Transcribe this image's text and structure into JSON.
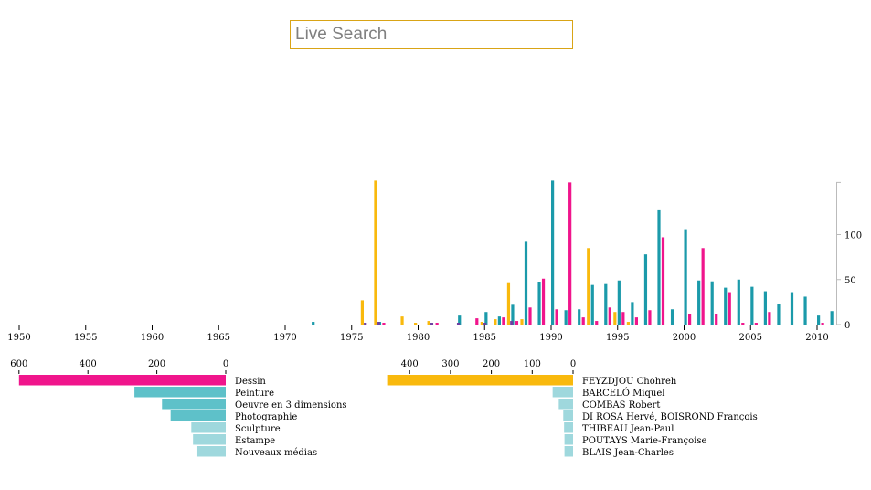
{
  "search": {
    "placeholder": "Live Search",
    "value": ""
  },
  "colors": {
    "teal": "#1b9aaa",
    "pink": "#f0158c",
    "yellow": "#f9b90d",
    "light_teal": "#5ec1c9",
    "pale_teal": "#9fd8dd",
    "purple": "#6e3fa0"
  },
  "chart_data": [
    {
      "type": "bar",
      "x_range": [
        1950,
        2011
      ],
      "x_ticks": [
        "1950",
        "1955",
        "1960",
        "1965",
        "1970",
        "1975",
        "1980",
        "1985",
        "1990",
        "1995",
        "2000",
        "2005",
        "2010"
      ],
      "y_ticks": [
        "0",
        "50",
        "100"
      ],
      "ylim": [
        0,
        160
      ],
      "grid": false,
      "series": [
        {
          "color": "teal",
          "points": [
            [
              1972,
              3
            ],
            [
              1977,
              3
            ],
            [
              1983,
              10
            ],
            [
              1985,
              14
            ],
            [
              1986,
              9
            ],
            [
              1987,
              22
            ],
            [
              1988,
              92
            ],
            [
              1989,
              47
            ],
            [
              1990,
              160
            ],
            [
              1991,
              16
            ],
            [
              1992,
              17
            ],
            [
              1993,
              44
            ],
            [
              1994,
              45
            ],
            [
              1995,
              49
            ],
            [
              1996,
              25
            ],
            [
              1997,
              78
            ],
            [
              1998,
              127
            ],
            [
              1999,
              17
            ],
            [
              2000,
              105
            ],
            [
              2001,
              49
            ],
            [
              2002,
              48
            ],
            [
              2003,
              41
            ],
            [
              2004,
              50
            ],
            [
              2005,
              42
            ],
            [
              2006,
              37
            ],
            [
              2007,
              23
            ],
            [
              2008,
              36
            ],
            [
              2009,
              31
            ],
            [
              2010,
              10
            ],
            [
              2011,
              15
            ]
          ]
        },
        {
          "color": "pink",
          "points": [
            [
              1977,
              2
            ],
            [
              1981,
              2
            ],
            [
              1984,
              7
            ],
            [
              1986,
              8
            ],
            [
              1987,
              4
            ],
            [
              1988,
              19
            ],
            [
              1989,
              51
            ],
            [
              1990,
              17
            ],
            [
              1991,
              158
            ],
            [
              1992,
              8
            ],
            [
              1993,
              4
            ],
            [
              1994,
              19
            ],
            [
              1995,
              14
            ],
            [
              1996,
              8
            ],
            [
              1997,
              16
            ],
            [
              1998,
              97
            ],
            [
              2000,
              12
            ],
            [
              2001,
              85
            ],
            [
              2002,
              12
            ],
            [
              2003,
              36
            ],
            [
              2004,
              2
            ],
            [
              2005,
              2
            ],
            [
              2006,
              14
            ],
            [
              2010,
              2
            ]
          ]
        },
        {
          "color": "yellow",
          "points": [
            [
              1976,
              27
            ],
            [
              1977,
              160
            ],
            [
              1979,
              9
            ],
            [
              1980,
              2
            ],
            [
              1981,
              4
            ],
            [
              1985,
              3
            ],
            [
              1986,
              6
            ],
            [
              1987,
              46
            ],
            [
              1988,
              6
            ],
            [
              1993,
              85
            ],
            [
              1995,
              14
            ],
            [
              1996,
              3
            ]
          ]
        },
        {
          "color": "purple",
          "points": [
            [
              1976,
              2
            ],
            [
              1977,
              3
            ],
            [
              1981,
              2
            ],
            [
              1983,
              2
            ],
            [
              1985,
              2
            ],
            [
              1987,
              4
            ]
          ]
        }
      ]
    },
    {
      "type": "bar",
      "orientation": "horizontal",
      "axis_ticks": [
        "600",
        "400",
        "200",
        "0"
      ],
      "xlim": [
        0,
        600
      ],
      "categories": [
        "Dessin",
        "Peinture",
        "Oeuvre en 3 dimensions",
        "Photographie",
        "Sculpture",
        "Estampe",
        "Nouveaux médias"
      ],
      "values": [
        600,
        265,
        185,
        160,
        100,
        95,
        85
      ],
      "bar_colors": [
        "pink",
        "light_teal",
        "light_teal",
        "light_teal",
        "pale_teal",
        "pale_teal",
        "pale_teal"
      ]
    },
    {
      "type": "bar",
      "orientation": "horizontal",
      "axis_ticks": [
        "400",
        "300",
        "200",
        "100",
        "0"
      ],
      "xlim": [
        0,
        450
      ],
      "categories": [
        "FEYZDJOU Chohreh",
        "BARCELÓ Miquel",
        "COMBAS Robert",
        "DI ROSA Hervé, BOISROND François",
        "THIBEAU Jean-Paul",
        "POUTAYS Marie-Françoise",
        "BLAIS Jean-Charles"
      ],
      "values": [
        455,
        50,
        35,
        24,
        22,
        21,
        21
      ],
      "bar_colors": [
        "yellow",
        "pale_teal",
        "pale_teal",
        "pale_teal",
        "pale_teal",
        "pale_teal",
        "pale_teal"
      ]
    }
  ]
}
